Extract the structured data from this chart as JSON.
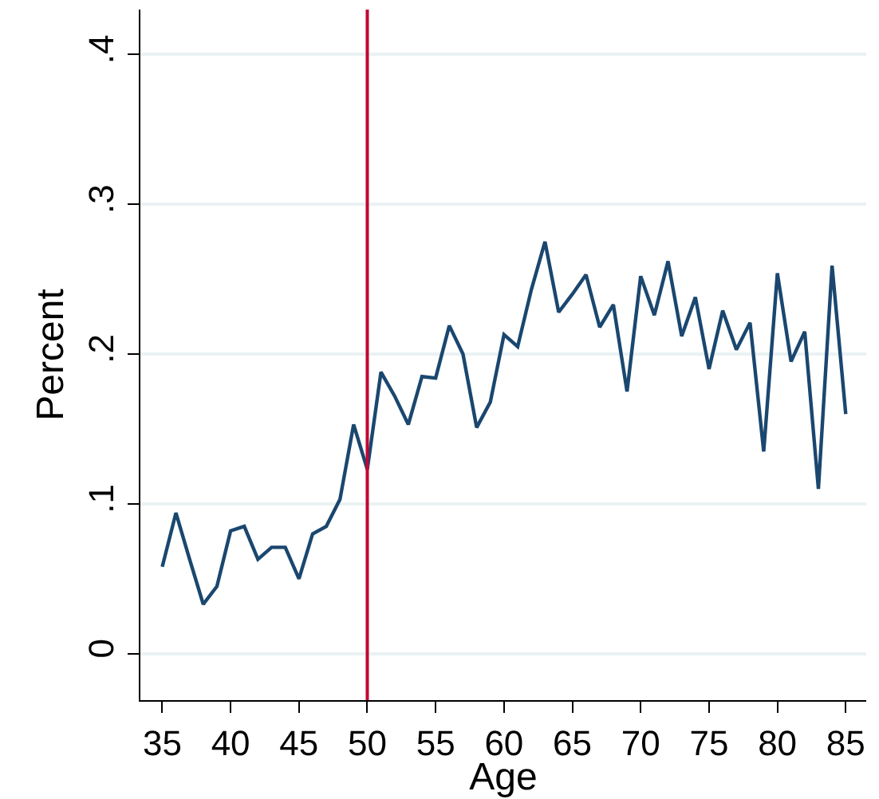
{
  "chart_data": {
    "type": "line",
    "xlabel": "Age",
    "ylabel": "Percent",
    "x": [
      35,
      36,
      37,
      38,
      39,
      40,
      41,
      42,
      43,
      44,
      45,
      46,
      47,
      48,
      49,
      50,
      51,
      52,
      53,
      54,
      55,
      56,
      57,
      58,
      59,
      60,
      61,
      62,
      63,
      64,
      65,
      66,
      67,
      68,
      69,
      70,
      71,
      72,
      73,
      74,
      75,
      76,
      77,
      78,
      79,
      80,
      81,
      82,
      83,
      84,
      85
    ],
    "series": [
      {
        "color": "#1a476f",
        "values": [
          0.058,
          0.094,
          0.063,
          0.033,
          0.045,
          0.082,
          0.085,
          0.063,
          0.071,
          0.071,
          0.05,
          0.08,
          0.085,
          0.103,
          0.153,
          0.123,
          0.188,
          0.172,
          0.153,
          0.185,
          0.184,
          0.219,
          0.2,
          0.151,
          0.168,
          0.213,
          0.205,
          0.243,
          0.275,
          0.228,
          0.24,
          0.253,
          0.218,
          0.233,
          0.175,
          0.252,
          0.226,
          0.262,
          0.212,
          0.238,
          0.19,
          0.229,
          0.203,
          0.221,
          0.135,
          0.254,
          0.195,
          0.215,
          0.11,
          0.259,
          0.16
        ]
      }
    ],
    "xlim": [
      33.4,
      86.5
    ],
    "xticks": [
      35,
      40,
      45,
      50,
      55,
      60,
      65,
      70,
      75,
      80,
      85
    ],
    "ylim": [
      -0.031,
      0.43
    ],
    "yticks": [
      {
        "value": 0,
        "label": "0"
      },
      {
        "value": 0.1,
        "label": ".1"
      },
      {
        "value": 0.2,
        "label": ".2"
      },
      {
        "value": 0.3,
        "label": ".3"
      },
      {
        "value": 0.4,
        "label": ".4"
      }
    ],
    "grid": "y",
    "legend": false,
    "marker": "none",
    "line_style": "solid",
    "ref_lines": [
      {
        "axis": "x",
        "value": 50,
        "color": "#c10534"
      }
    ]
  }
}
